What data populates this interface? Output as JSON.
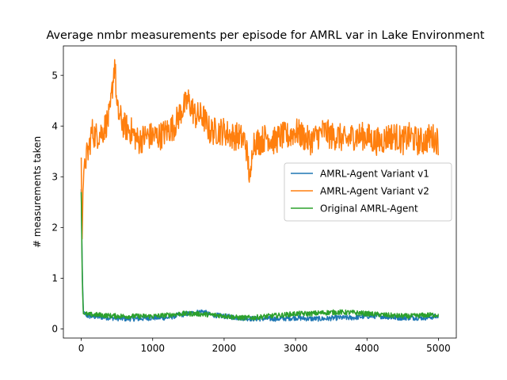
{
  "chart_data": {
    "type": "line",
    "title": "Average nmbr measurements per episode for AMRL var in Lake Environment",
    "xlabel": "",
    "ylabel": "# measurements taken",
    "xlim": [
      -250,
      5250
    ],
    "ylim": [
      -0.18,
      5.58
    ],
    "x_ticks": [
      0,
      1000,
      2000,
      3000,
      4000,
      5000
    ],
    "y_ticks": [
      0,
      1,
      2,
      3,
      4,
      5
    ],
    "x_tick_labels": [
      "0",
      "1000",
      "2000",
      "3000",
      "4000",
      "5000"
    ],
    "y_tick_labels": [
      "0",
      "1",
      "2",
      "3",
      "4",
      "5"
    ],
    "grid": false,
    "legend_position": "center-right",
    "series": [
      {
        "name": "AMRL-Agent Variant v1",
        "color": "#1f77b4",
        "x": [
          0,
          15,
          30,
          60,
          100,
          200,
          400,
          600,
          800,
          1000,
          1200,
          1400,
          1600,
          1700,
          1800,
          2000,
          2200,
          2400,
          2600,
          2800,
          3000,
          3200,
          3400,
          3600,
          3800,
          4000,
          4200,
          4400,
          4600,
          4800,
          5000
        ],
        "y": [
          2.75,
          1.05,
          0.35,
          0.28,
          0.25,
          0.24,
          0.22,
          0.2,
          0.2,
          0.22,
          0.22,
          0.28,
          0.32,
          0.35,
          0.28,
          0.25,
          0.22,
          0.2,
          0.2,
          0.2,
          0.22,
          0.2,
          0.2,
          0.22,
          0.22,
          0.25,
          0.25,
          0.22,
          0.22,
          0.22,
          0.25
        ]
      },
      {
        "name": "AMRL-Agent Variant v2",
        "color": "#ff7f0e",
        "x": [
          0,
          10,
          25,
          50,
          100,
          150,
          200,
          300,
          400,
          470,
          500,
          600,
          700,
          800,
          900,
          1000,
          1100,
          1200,
          1300,
          1400,
          1500,
          1600,
          1700,
          1800,
          1900,
          2000,
          2100,
          2200,
          2300,
          2370,
          2400,
          2500,
          2600,
          2700,
          2800,
          2900,
          3000,
          3100,
          3200,
          3300,
          3400,
          3500,
          3600,
          3700,
          3800,
          3900,
          4000,
          4100,
          4200,
          4300,
          4400,
          4500,
          4600,
          4700,
          4800,
          4900,
          5000
        ],
        "y": [
          3.3,
          1.7,
          2.8,
          3.3,
          3.5,
          3.9,
          3.8,
          3.9,
          4.2,
          5.3,
          4.3,
          4.0,
          3.9,
          3.7,
          3.8,
          3.8,
          3.8,
          3.9,
          4.0,
          4.3,
          4.5,
          4.2,
          4.2,
          3.9,
          3.9,
          3.9,
          3.8,
          3.8,
          3.7,
          2.85,
          3.7,
          3.7,
          3.8,
          3.7,
          3.8,
          3.8,
          3.9,
          3.8,
          3.7,
          3.8,
          3.9,
          3.8,
          3.8,
          3.7,
          3.8,
          3.8,
          3.8,
          3.7,
          3.7,
          3.8,
          3.8,
          3.7,
          3.8,
          3.7,
          3.7,
          3.8,
          3.7
        ]
      },
      {
        "name": "Original AMRL-Agent",
        "color": "#2ca02c",
        "x": [
          0,
          15,
          30,
          60,
          100,
          200,
          400,
          600,
          800,
          1000,
          1200,
          1400,
          1600,
          1800,
          2000,
          2200,
          2400,
          2600,
          2800,
          3000,
          3200,
          3400,
          3600,
          3800,
          4000,
          4200,
          4400,
          4600,
          4800,
          5000
        ],
        "y": [
          2.7,
          0.9,
          0.3,
          0.3,
          0.28,
          0.28,
          0.26,
          0.25,
          0.25,
          0.25,
          0.27,
          0.3,
          0.3,
          0.28,
          0.26,
          0.22,
          0.22,
          0.25,
          0.27,
          0.3,
          0.3,
          0.32,
          0.33,
          0.32,
          0.3,
          0.28,
          0.26,
          0.25,
          0.27,
          0.28
        ]
      }
    ]
  }
}
